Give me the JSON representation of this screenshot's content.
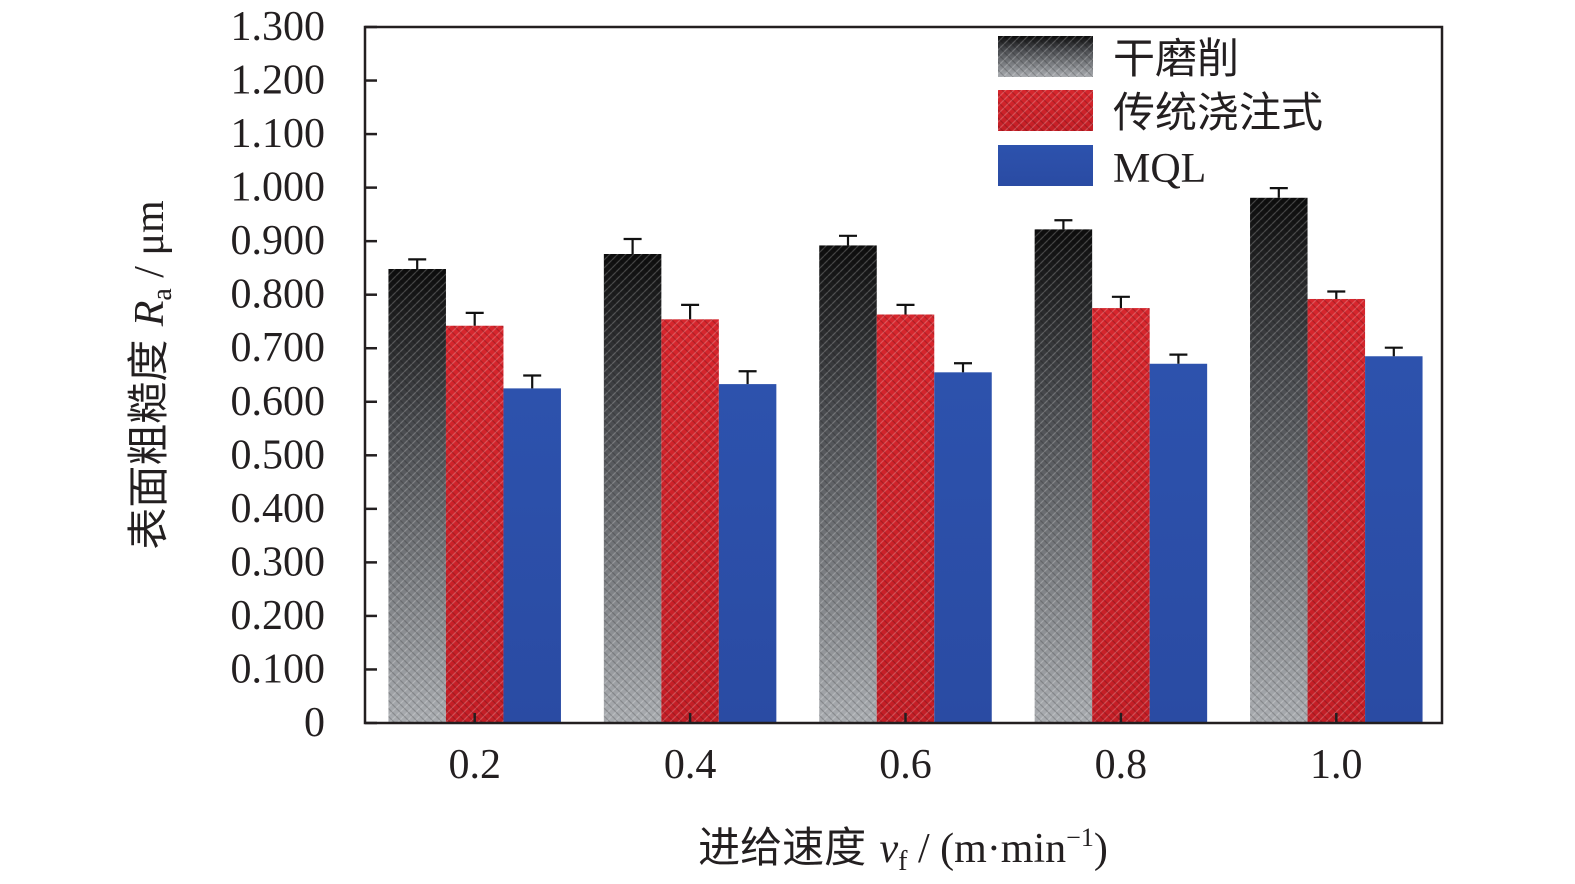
{
  "chart_data": {
    "type": "bar",
    "xlabel": {
      "main": "进给速度 ",
      "var": "v",
      "sub": "f",
      "unit_pre": " / (m·min",
      "sup": "−1",
      "unit_post": ")"
    },
    "ylabel": {
      "main": "表面粗糙度 ",
      "var": "R",
      "sub": "a",
      "unit": " / μm"
    },
    "categories": [
      "0.2",
      "0.4",
      "0.6",
      "0.8",
      "1.0"
    ],
    "yticks": [
      "0",
      "0.100",
      "0.200",
      "0.300",
      "0.400",
      "0.500",
      "0.600",
      "0.700",
      "0.800",
      "0.900",
      "1.000",
      "1.100",
      "1.200",
      "1.300"
    ],
    "ylim": [
      0,
      1.3
    ],
    "legend_position": "top-right",
    "series": [
      {
        "name": "干磨削",
        "values": [
          0.848,
          0.876,
          0.892,
          0.922,
          0.981
        ],
        "errors": [
          0.018,
          0.028,
          0.018,
          0.017,
          0.018
        ],
        "style": "black-to-gray-gradient",
        "color": "#111111"
      },
      {
        "name": "传统浇注式",
        "values": [
          0.742,
          0.754,
          0.763,
          0.775,
          0.792
        ],
        "errors": [
          0.024,
          0.027,
          0.018,
          0.021,
          0.014
        ],
        "style": "red-crosshatch",
        "color": "#d2232a"
      },
      {
        "name": "MQL",
        "values": [
          0.625,
          0.633,
          0.655,
          0.671,
          0.685
        ],
        "errors": [
          0.024,
          0.024,
          0.017,
          0.017,
          0.016
        ],
        "style": "blue-solid",
        "color": "#2b4da6"
      }
    ]
  }
}
